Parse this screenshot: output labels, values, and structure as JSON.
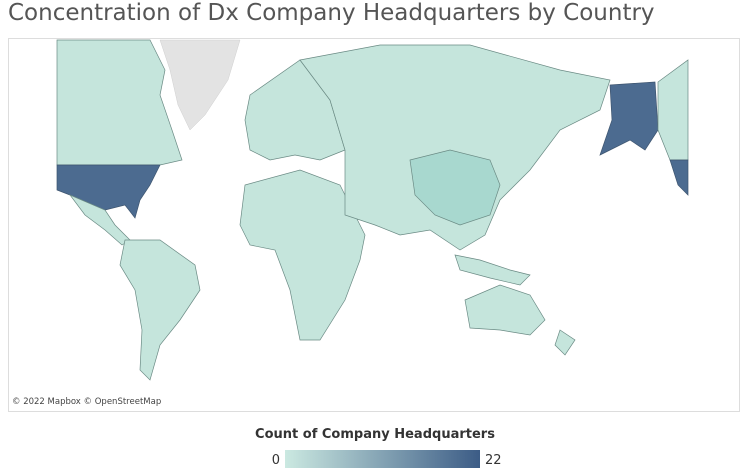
{
  "header": {
    "title": "Concentration of Dx Company Headquarters by Country"
  },
  "map": {
    "attribution": "© 2022 Mapbox © OpenStreetMap"
  },
  "legend": {
    "title": "Count of Company Headquarters",
    "min": 0,
    "max": 22,
    "color_low": "#cbe9e1",
    "color_high": "#3c5c86"
  }
}
